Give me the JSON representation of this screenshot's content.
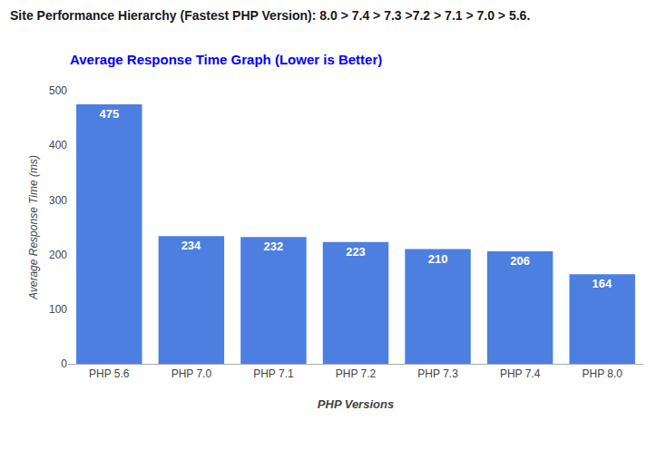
{
  "chart_data": {
    "type": "bar",
    "title": "Site Performance Hierarchy (Fastest PHP Version): 8.0 > 7.4 > 7.3 >7.2 > 7.1 > 7.0 > 5.6.",
    "subtitle": "Average Response Time Graph (Lower is Better)",
    "annotations": [
      "– Average Response Time Graph"
    ],
    "xlabel": "PHP Versions",
    "ylabel": "Average Response Time (ms)",
    "categories": [
      "PHP 5.6",
      "PHP 7.0",
      "PHP 7.1",
      "PHP 7.2",
      "PHP 7.3",
      "PHP 7.4",
      "PHP 8.0"
    ],
    "values": [
      475,
      234,
      232,
      223,
      210,
      206,
      164
    ],
    "color": "#4d7fe0",
    "ylim": [
      0,
      500
    ],
    "yticks": [
      0,
      100,
      200,
      300,
      400,
      500
    ],
    "grid": false,
    "data_labels": true
  }
}
